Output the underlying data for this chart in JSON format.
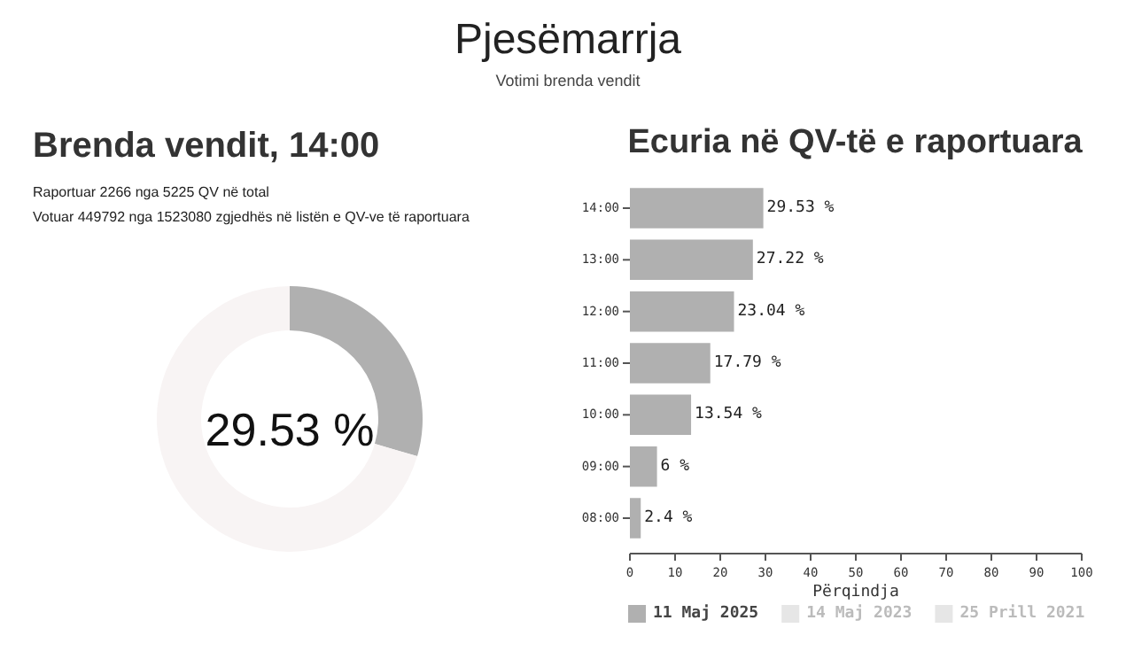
{
  "chart_data": [
    {
      "type": "donut",
      "title": "Pjesëmarrja",
      "subtitle": "Votimi brenda vendit",
      "annotations": [
        "Brenda vendit, 14:00",
        "Raportuar 2266 nga 5225 QV në total",
        "Votuar 449792 nga 1523080 zgjedhës në listën e QV-ve të raportuara",
        "29.53 %"
      ],
      "categories": [
        null,
        null
      ],
      "values": [
        29.53,
        70.47
      ],
      "colors": [
        "#b0b0b0",
        "#f8f4f4"
      ]
    },
    {
      "type": "bar",
      "orientation": "horizontal",
      "title": "Ecuria në QV-të e raportuara",
      "xlabel": "Përqindja",
      "categories": [
        "14:00",
        "13:00",
        "12:00",
        "11:00",
        "10:00",
        "09:00",
        "08:00"
      ],
      "series": [
        {
          "name": "11 Maj 2025",
          "color": "#b0b0b0",
          "values": [
            29.53,
            27.22,
            23.04,
            17.79,
            13.54,
            6,
            2.4
          ],
          "value_labels": [
            "29.53 %",
            "27.22 %",
            "23.04 %",
            "17.79 %",
            "13.54 %",
            "6 %",
            "2.4 %"
          ]
        },
        {
          "name": "14 Maj 2023",
          "color": "#e6e6e6",
          "values": [
            null,
            null,
            null,
            null,
            null,
            null,
            null
          ]
        },
        {
          "name": "25 Prill 2021",
          "color": "#e6e6e6",
          "values": [
            null,
            null,
            null,
            null,
            null,
            null,
            null
          ]
        }
      ],
      "xlim": [
        0,
        100
      ],
      "xticks": [
        0,
        10,
        20,
        30,
        40,
        50,
        60,
        70,
        80,
        90,
        100
      ],
      "legend": "bottom"
    }
  ]
}
